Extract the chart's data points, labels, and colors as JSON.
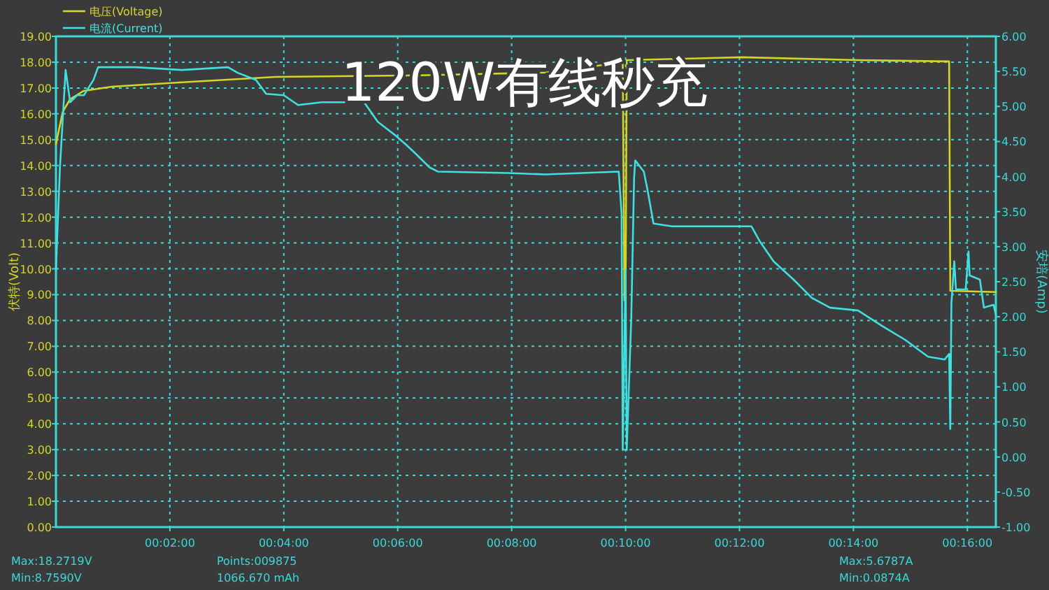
{
  "chart_data": {
    "type": "line",
    "ylabel": "伏特(Volt)",
    "y2label": "安培(Amp)",
    "annotations": [
      "120W有线秒充",
      "Max:18.2719V",
      "Min:8.7590V",
      "Points:009875",
      "1066.670 mAh",
      "Max:5.6787A",
      "Min:0.0874A"
    ],
    "xlim": [
      0,
      16.5
    ],
    "xticks": [
      {
        "value": 2,
        "label": "00:02:00"
      },
      {
        "value": 4,
        "label": "00:04:00"
      },
      {
        "value": 6,
        "label": "00:06:00"
      },
      {
        "value": 8,
        "label": "00:08:00"
      },
      {
        "value": 10,
        "label": "00:10:00"
      },
      {
        "value": 12,
        "label": "00:12:00"
      },
      {
        "value": 14,
        "label": "00:14:00"
      },
      {
        "value": 16,
        "label": "00:16:00"
      }
    ],
    "ylim": [
      0,
      19
    ],
    "yticks": [
      {
        "value": 0,
        "label": "0.00"
      },
      {
        "value": 1,
        "label": "1.00"
      },
      {
        "value": 2,
        "label": "2.00"
      },
      {
        "value": 3,
        "label": "3.00"
      },
      {
        "value": 4,
        "label": "4.00"
      },
      {
        "value": 5,
        "label": "5.00"
      },
      {
        "value": 6,
        "label": "6.00"
      },
      {
        "value": 7,
        "label": "7.00"
      },
      {
        "value": 8,
        "label": "8.00"
      },
      {
        "value": 9,
        "label": "9.00"
      },
      {
        "value": 10,
        "label": "10.00"
      },
      {
        "value": 11,
        "label": "11.00"
      },
      {
        "value": 12,
        "label": "12.00"
      },
      {
        "value": 13,
        "label": "13.00"
      },
      {
        "value": 14,
        "label": "14.00"
      },
      {
        "value": 15,
        "label": "15.00"
      },
      {
        "value": 16,
        "label": "16.00"
      },
      {
        "value": 17,
        "label": "17.00"
      },
      {
        "value": 18,
        "label": "18.00"
      },
      {
        "value": 19,
        "label": "19.00"
      }
    ],
    "y2lim": [
      -1,
      6
    ],
    "y2ticks": [
      {
        "value": -1,
        "label": "-1.00"
      },
      {
        "value": -0.5,
        "label": "-0.50"
      },
      {
        "value": 0,
        "label": "0.00"
      },
      {
        "value": 0.5,
        "label": "0.50"
      },
      {
        "value": 1,
        "label": "1.00"
      },
      {
        "value": 1.5,
        "label": "1.50"
      },
      {
        "value": 2,
        "label": "2.00"
      },
      {
        "value": 2.5,
        "label": "2.50"
      },
      {
        "value": 3,
        "label": "3.00"
      },
      {
        "value": 3.5,
        "label": "3.50"
      },
      {
        "value": 4,
        "label": "4.00"
      },
      {
        "value": 4.5,
        "label": "4.50"
      },
      {
        "value": 5,
        "label": "5.00"
      },
      {
        "value": 5.5,
        "label": "5.50"
      },
      {
        "value": 6,
        "label": "6.00"
      }
    ],
    "grid": true,
    "legend": "top left",
    "line_style": "solid",
    "series": [
      {
        "name": "电压(Voltage)",
        "color": "#d4d42a",
        "x": [
          0,
          0.12,
          0.25,
          0.49,
          0.98,
          2.21,
          3.86,
          6.39,
          8.6,
          9.9,
          9.95,
          9.98,
          10.0,
          10.02,
          12.04,
          14.08,
          15.68,
          15.7,
          16.5
        ],
        "values": [
          14.83,
          16.08,
          16.57,
          16.89,
          17.05,
          17.22,
          17.43,
          17.49,
          17.6,
          17.98,
          17.98,
          8.77,
          8.77,
          18.08,
          18.19,
          18.08,
          18.03,
          9.15,
          9.1
        ]
      },
      {
        "name": "电流(Current)",
        "color": "#40e0e0",
        "axis": "y2",
        "x": [
          0,
          0.07,
          0.17,
          0.25,
          0.37,
          0.49,
          0.66,
          0.74,
          1.4,
          2.21,
          3.02,
          3.19,
          3.51,
          3.69,
          4.0,
          4.25,
          4.67,
          5.41,
          5.65,
          5.97,
          6.14,
          6.31,
          6.56,
          6.71,
          7.94,
          8.6,
          9.88,
          9.93,
          9.95,
          10.0,
          10.02,
          10.1,
          10.15,
          10.17,
          10.32,
          10.39,
          10.49,
          10.81,
          12.21,
          12.36,
          12.6,
          12.95,
          13.27,
          13.59,
          14.08,
          14.5,
          14.91,
          15.31,
          15.6,
          15.68,
          15.7,
          15.72,
          15.77,
          15.8,
          15.97,
          16.02,
          16.04,
          16.22,
          16.29,
          16.46,
          16.5
        ],
        "values": [
          2.67,
          4.13,
          5.52,
          5.06,
          5.16,
          5.16,
          5.38,
          5.56,
          5.56,
          5.52,
          5.56,
          5.48,
          5.38,
          5.18,
          5.16,
          5.02,
          5.06,
          5.06,
          4.78,
          4.58,
          4.46,
          4.33,
          4.13,
          4.07,
          4.05,
          4.03,
          4.07,
          3.47,
          0.1,
          2.67,
          0.1,
          1.99,
          3.99,
          4.23,
          4.07,
          3.79,
          3.33,
          3.29,
          3.29,
          3.07,
          2.79,
          2.53,
          2.27,
          2.13,
          2.09,
          1.87,
          1.67,
          1.43,
          1.39,
          1.47,
          0.4,
          2.19,
          2.79,
          2.39,
          2.39,
          2.93,
          2.59,
          2.53,
          2.13,
          2.17,
          2.03
        ]
      }
    ]
  }
}
